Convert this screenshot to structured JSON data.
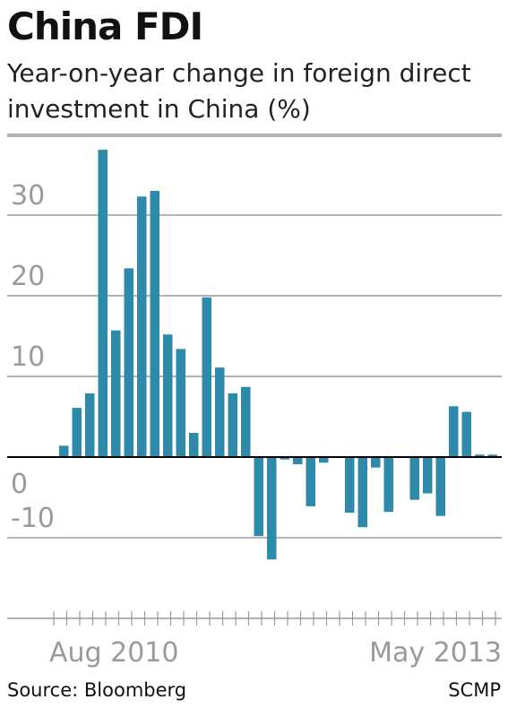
{
  "header": {
    "title": "China FDI",
    "subtitle": "Year-on-year change in foreign direct investment in China (%)"
  },
  "footer": {
    "source": "Source: Bloomberg",
    "credit": "SCMP"
  },
  "colors": {
    "bar": "#2e8aab",
    "grid": "#999999",
    "zero_line": "#000000",
    "tick_text": "#9a9a9a"
  },
  "chart_data": {
    "type": "bar",
    "title": "China FDI",
    "subtitle": "Year-on-year change in foreign direct investment in China (%)",
    "xlabel": "",
    "ylabel": "",
    "ylim": [
      -20,
      40
    ],
    "yticks": [
      -10,
      0,
      10,
      20,
      30,
      40
    ],
    "grid": true,
    "x_tick_labels": [
      {
        "index": 0,
        "label": "Aug 2010"
      },
      {
        "index": 33,
        "label": "May 2013"
      }
    ],
    "values": [
      1.4,
      6.1,
      7.9,
      38.1,
      15.7,
      23.4,
      32.3,
      33.0,
      15.2,
      13.4,
      3.0,
      19.8,
      11.1,
      7.9,
      8.7,
      -9.8,
      -12.7,
      -0.3,
      -0.9,
      -6.1,
      -0.7,
      0.0,
      -6.9,
      -8.7,
      -1.3,
      -6.8,
      0.0,
      -5.3,
      -4.5,
      -7.3,
      6.3,
      5.6,
      0.3,
      0.3
    ]
  }
}
